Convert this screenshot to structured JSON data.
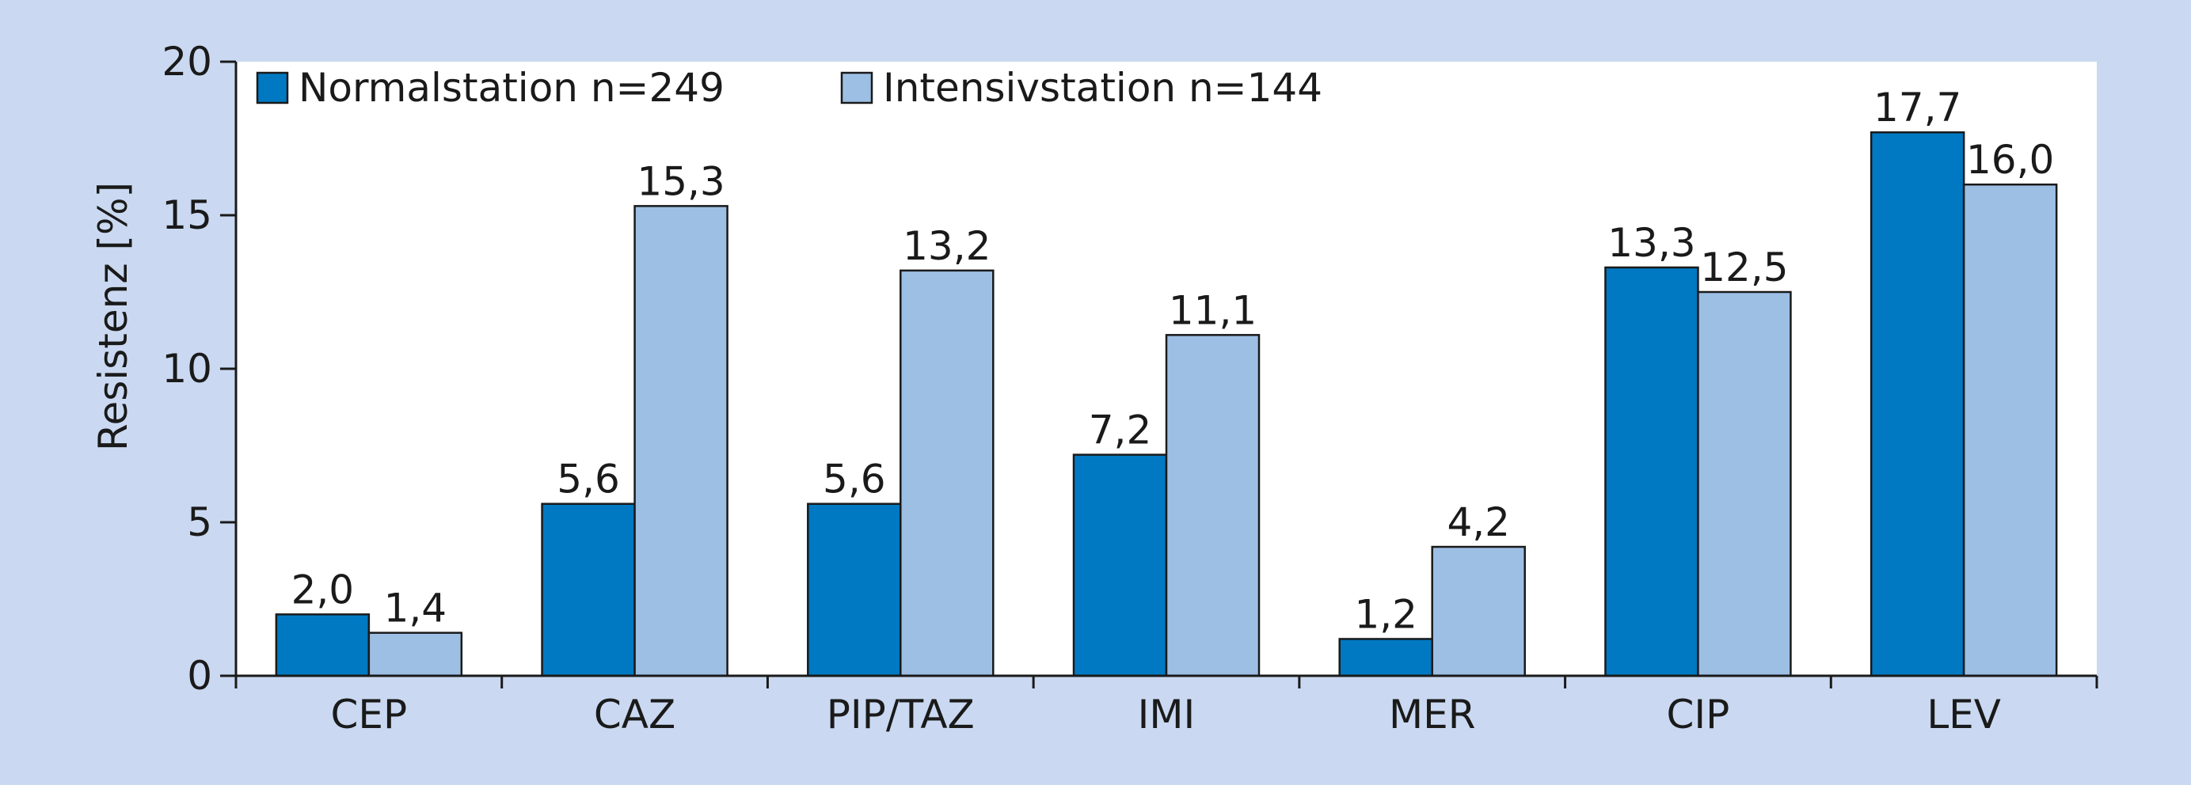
{
  "chart_data": {
    "type": "bar",
    "categories": [
      "CEP",
      "CAZ",
      "PIP/TAZ",
      "IMI",
      "MER",
      "CIP",
      "LEV"
    ],
    "series": [
      {
        "name": "Normalstation n=249",
        "values": [
          2.0,
          5.6,
          5.6,
          7.2,
          1.2,
          13.3,
          17.7
        ],
        "labels": [
          "2,0",
          "5,6",
          "5,6",
          "7,2",
          "1,2",
          "13,3",
          "17,7"
        ],
        "color": "#0079c2"
      },
      {
        "name": "Intensivstation n=144",
        "values": [
          1.4,
          15.3,
          13.2,
          11.1,
          4.2,
          12.5,
          16.0
        ],
        "labels": [
          "1,4",
          "15,3",
          "13,2",
          "11,1",
          "4,2",
          "12,5",
          "16,0"
        ],
        "color": "#9dbfe4"
      }
    ],
    "title": "",
    "xlabel": "",
    "ylabel": "Resistenz [%]",
    "ylim": [
      0,
      20
    ],
    "yticks": [
      0,
      5,
      10,
      15,
      20
    ],
    "grid": false,
    "legend_position": "top-left",
    "background_color": "#cad9f1",
    "plot_background_color": "#ffffff"
  }
}
